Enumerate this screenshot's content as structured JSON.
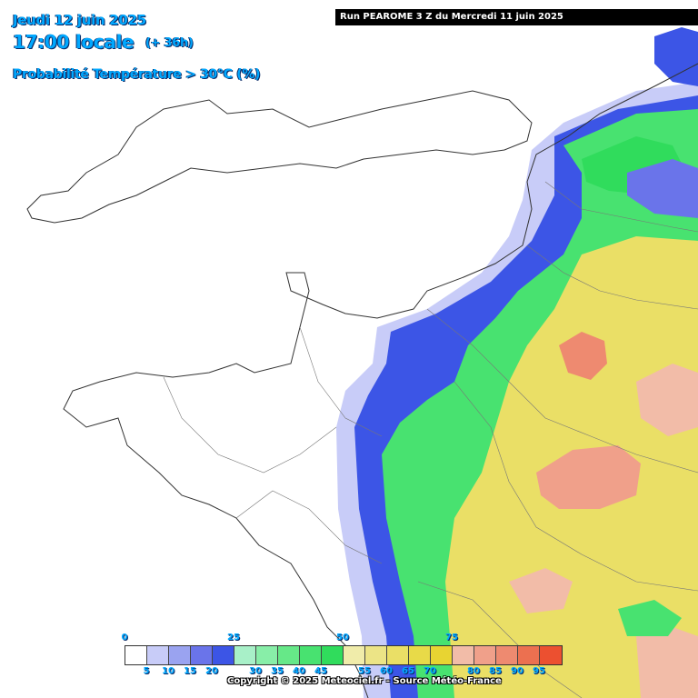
{
  "header": {
    "date": "Jeudi 12 juin 2025",
    "time": "17:00 locale",
    "lead": "(+ 36h)",
    "parameter": "Probabilité Température > 30°C (%)"
  },
  "run_label": "Run PEAROME 3 Z du Mercredi 11 juin 2025",
  "legend": {
    "colors": [
      "#ffffff",
      "#c8ccf8",
      "#9aa3f0",
      "#6a74ea",
      "#3c55e6",
      "#a8f0c8",
      "#88eea8",
      "#66e888",
      "#48e270",
      "#30dc5c",
      "#f0ecaa",
      "#ece486",
      "#eadf66",
      "#e8da48",
      "#e8d432",
      "#f2bca8",
      "#f0a08a",
      "#ee8a70",
      "#ec7050",
      "#ec5030"
    ],
    "major_labels": [
      "0",
      "25",
      "50",
      "75"
    ],
    "minor_labels": [
      "5",
      "10",
      "15",
      "20",
      "30",
      "35",
      "40",
      "45",
      "55",
      "60",
      "65",
      "70",
      "80",
      "85",
      "90",
      "95"
    ]
  },
  "copyright": "Copyright © 2025 Meteociel.fr - Source Météo-France"
}
